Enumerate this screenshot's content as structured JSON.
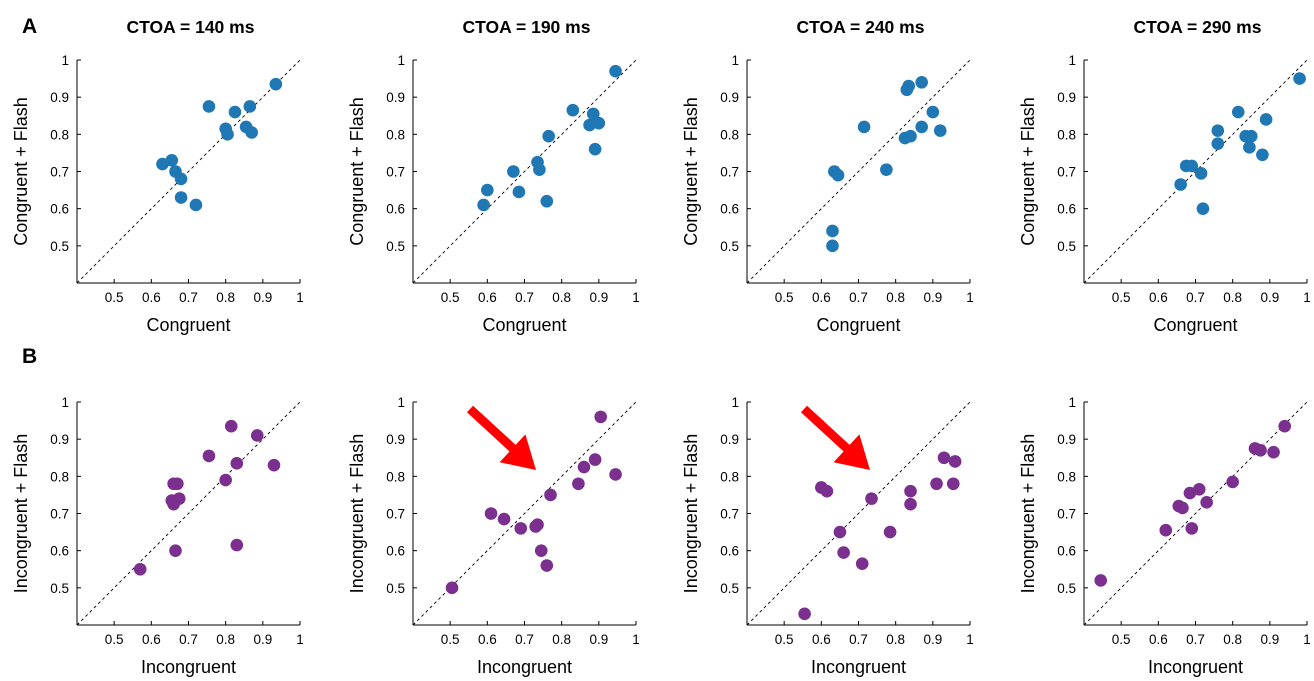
{
  "figure": {
    "panel_labels": [
      "A",
      "B"
    ],
    "column_titles": [
      "CTOA = 140 ms",
      "CTOA = 190 ms",
      "CTOA = 240 ms",
      "CTOA = 290 ms"
    ],
    "colors": {
      "row_a": "#1f77b4",
      "row_b": "#7b2f8e",
      "arrow": "#ff0000",
      "axis": "#000000"
    }
  },
  "chart_data": [
    {
      "type": "scatter",
      "panel": "A",
      "title": "CTOA = 140 ms",
      "xlabel": "Congruent",
      "ylabel": "Congruent + Flash",
      "xlim": [
        0.4,
        1
      ],
      "ylim": [
        0.4,
        1
      ],
      "xticks": [
        "0.5",
        "0.6",
        "0.7",
        "0.8",
        "0.9",
        "1"
      ],
      "yticks": [
        "0.5",
        "0.6",
        "0.7",
        "0.8",
        "0.9",
        "1"
      ],
      "diagonal": true,
      "arrow": false,
      "x": [
        0.63,
        0.655,
        0.665,
        0.68,
        0.68,
        0.72,
        0.755,
        0.8,
        0.805,
        0.825,
        0.855,
        0.865,
        0.87,
        0.935
      ],
      "y": [
        0.72,
        0.73,
        0.7,
        0.68,
        0.63,
        0.61,
        0.875,
        0.815,
        0.8,
        0.86,
        0.82,
        0.875,
        0.805,
        0.935
      ]
    },
    {
      "type": "scatter",
      "panel": "A",
      "title": "CTOA = 190 ms",
      "xlabel": "Congruent",
      "ylabel": "Congruent + Flash",
      "xlim": [
        0.4,
        1
      ],
      "ylim": [
        0.4,
        1
      ],
      "xticks": [
        "0.5",
        "0.6",
        "0.7",
        "0.8",
        "0.9",
        "1"
      ],
      "yticks": [
        "0.5",
        "0.6",
        "0.7",
        "0.8",
        "0.9",
        "1"
      ],
      "diagonal": true,
      "arrow": false,
      "x": [
        0.59,
        0.6,
        0.67,
        0.685,
        0.735,
        0.74,
        0.76,
        0.765,
        0.83,
        0.875,
        0.885,
        0.89,
        0.9,
        0.945
      ],
      "y": [
        0.61,
        0.65,
        0.7,
        0.645,
        0.725,
        0.705,
        0.62,
        0.795,
        0.865,
        0.825,
        0.855,
        0.76,
        0.83,
        0.97
      ]
    },
    {
      "type": "scatter",
      "panel": "A",
      "title": "CTOA = 240 ms",
      "xlabel": "Congruent",
      "ylabel": "Congruent + Flash",
      "xlim": [
        0.4,
        1
      ],
      "ylim": [
        0.4,
        1
      ],
      "xticks": [
        "0.5",
        "0.6",
        "0.7",
        "0.8",
        "0.9",
        "1"
      ],
      "yticks": [
        "0.5",
        "0.6",
        "0.7",
        "0.8",
        "0.9",
        "1"
      ],
      "diagonal": true,
      "arrow": false,
      "x": [
        0.63,
        0.63,
        0.635,
        0.645,
        0.715,
        0.775,
        0.825,
        0.83,
        0.835,
        0.84,
        0.87,
        0.87,
        0.9,
        0.92
      ],
      "y": [
        0.54,
        0.5,
        0.7,
        0.69,
        0.82,
        0.705,
        0.79,
        0.92,
        0.93,
        0.795,
        0.94,
        0.82,
        0.86,
        0.81
      ]
    },
    {
      "type": "scatter",
      "panel": "A",
      "title": "CTOA = 290 ms",
      "xlabel": "Congruent",
      "ylabel": "Congruent + Flash",
      "xlim": [
        0.4,
        1
      ],
      "ylim": [
        0.4,
        1
      ],
      "xticks": [
        "0.5",
        "0.6",
        "0.7",
        "0.8",
        "0.9",
        "1"
      ],
      "yticks": [
        "0.5",
        "0.6",
        "0.7",
        "0.8",
        "0.9",
        "1"
      ],
      "diagonal": true,
      "arrow": false,
      "x": [
        0.66,
        0.675,
        0.69,
        0.715,
        0.72,
        0.76,
        0.76,
        0.815,
        0.835,
        0.845,
        0.85,
        0.88,
        0.89,
        0.98
      ],
      "y": [
        0.665,
        0.715,
        0.715,
        0.695,
        0.6,
        0.775,
        0.81,
        0.86,
        0.795,
        0.765,
        0.795,
        0.745,
        0.84,
        0.95
      ]
    },
    {
      "type": "scatter",
      "panel": "B",
      "title": "",
      "xlabel": "Incongruent",
      "ylabel": "Incongruent + Flash",
      "xlim": [
        0.4,
        1
      ],
      "ylim": [
        0.4,
        1
      ],
      "xticks": [
        "0.5",
        "0.6",
        "0.7",
        "0.8",
        "0.9",
        "1"
      ],
      "yticks": [
        "0.5",
        "0.6",
        "0.7",
        "0.8",
        "0.9",
        "1"
      ],
      "diagonal": true,
      "arrow": false,
      "x": [
        0.57,
        0.655,
        0.66,
        0.66,
        0.665,
        0.67,
        0.675,
        0.755,
        0.8,
        0.815,
        0.83,
        0.83,
        0.885,
        0.93
      ],
      "y": [
        0.55,
        0.735,
        0.725,
        0.78,
        0.6,
        0.78,
        0.74,
        0.855,
        0.79,
        0.935,
        0.615,
        0.835,
        0.91,
        0.83
      ]
    },
    {
      "type": "scatter",
      "panel": "B",
      "title": "",
      "xlabel": "Incongruent",
      "ylabel": "Incongruent + Flash",
      "xlim": [
        0.4,
        1
      ],
      "ylim": [
        0.4,
        1
      ],
      "xticks": [
        "0.5",
        "0.6",
        "0.7",
        "0.8",
        "0.9",
        "1"
      ],
      "yticks": [
        "0.5",
        "0.6",
        "0.7",
        "0.8",
        "0.9",
        "1"
      ],
      "diagonal": true,
      "arrow": true,
      "x": [
        0.505,
        0.61,
        0.645,
        0.69,
        0.73,
        0.735,
        0.745,
        0.76,
        0.77,
        0.845,
        0.86,
        0.89,
        0.905,
        0.945
      ],
      "y": [
        0.5,
        0.7,
        0.685,
        0.66,
        0.665,
        0.67,
        0.6,
        0.56,
        0.75,
        0.78,
        0.825,
        0.845,
        0.96,
        0.805
      ]
    },
    {
      "type": "scatter",
      "panel": "B",
      "title": "",
      "xlabel": "Incongruent",
      "ylabel": "Incongruent + Flash",
      "xlim": [
        0.4,
        1
      ],
      "ylim": [
        0.4,
        1
      ],
      "xticks": [
        "0.5",
        "0.6",
        "0.7",
        "0.8",
        "0.9",
        "1"
      ],
      "yticks": [
        "0.5",
        "0.6",
        "0.7",
        "0.8",
        "0.9",
        "1"
      ],
      "diagonal": true,
      "arrow": true,
      "x": [
        0.555,
        0.6,
        0.615,
        0.65,
        0.66,
        0.71,
        0.735,
        0.785,
        0.84,
        0.84,
        0.91,
        0.93,
        0.955,
        0.96
      ],
      "y": [
        0.43,
        0.77,
        0.76,
        0.65,
        0.595,
        0.565,
        0.74,
        0.65,
        0.76,
        0.725,
        0.78,
        0.85,
        0.78,
        0.84
      ]
    },
    {
      "type": "scatter",
      "panel": "B",
      "title": "",
      "xlabel": "Incongruent",
      "ylabel": "Incongruent + Flash",
      "xlim": [
        0.4,
        1
      ],
      "ylim": [
        0.4,
        1
      ],
      "xticks": [
        "0.5",
        "0.6",
        "0.7",
        "0.8",
        "0.9",
        "1"
      ],
      "yticks": [
        "0.5",
        "0.6",
        "0.7",
        "0.8",
        "0.9",
        "1"
      ],
      "diagonal": true,
      "arrow": false,
      "x": [
        0.445,
        0.62,
        0.655,
        0.665,
        0.685,
        0.69,
        0.71,
        0.73,
        0.8,
        0.86,
        0.875,
        0.91,
        0.94
      ],
      "y": [
        0.52,
        0.655,
        0.72,
        0.715,
        0.755,
        0.66,
        0.765,
        0.73,
        0.785,
        0.875,
        0.87,
        0.865,
        0.935
      ]
    }
  ]
}
